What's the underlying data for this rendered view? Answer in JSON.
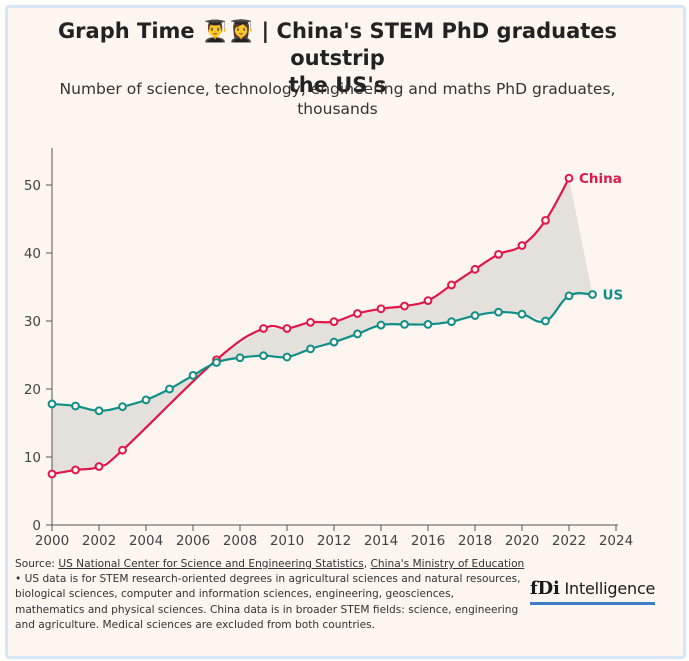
{
  "header": {
    "title_line1": "Graph Time 👨‍🎓👩‍🎓 | China's STEM PhD graduates outstrip",
    "title_line2": "the US's",
    "subtitle_line1": "Number of science, technology, engineering and maths PhD graduates,",
    "subtitle_line2": "thousands"
  },
  "chart_data": {
    "type": "line",
    "title": "China's STEM PhD graduates outstrip the US's",
    "ylabel": "Number of science, technology, engineering and maths PhD graduates, thousands",
    "xlim": [
      2000,
      2024
    ],
    "ylim": [
      0,
      55
    ],
    "x_ticks": [
      2000,
      2002,
      2004,
      2006,
      2008,
      2010,
      2012,
      2014,
      2016,
      2018,
      2020,
      2022,
      2024
    ],
    "y_ticks": [
      0,
      10,
      20,
      30,
      40,
      50
    ],
    "series": [
      {
        "name": "China",
        "color": "#e0174a",
        "points": [
          [
            2000,
            7.5
          ],
          [
            2001,
            8.1
          ],
          [
            2002,
            8.6
          ],
          [
            2003,
            11
          ],
          [
            2007,
            24.3
          ],
          [
            2009,
            28.9
          ],
          [
            2010,
            28.9
          ],
          [
            2011,
            29.8
          ],
          [
            2012,
            29.9
          ],
          [
            2013,
            31.1
          ],
          [
            2014,
            31.8
          ],
          [
            2015,
            32.2
          ],
          [
            2016,
            33
          ],
          [
            2017,
            35.3
          ],
          [
            2018,
            37.6
          ],
          [
            2019,
            39.8
          ],
          [
            2020,
            41.1
          ],
          [
            2021,
            44.8
          ],
          [
            2022,
            51
          ]
        ]
      },
      {
        "name": "US",
        "color": "#0f8f88",
        "points": [
          [
            2000,
            17.8
          ],
          [
            2001,
            17.5
          ],
          [
            2002,
            16.8
          ],
          [
            2003,
            17.4
          ],
          [
            2004,
            18.4
          ],
          [
            2005,
            20
          ],
          [
            2006,
            22
          ],
          [
            2007,
            23.9
          ],
          [
            2008,
            24.6
          ],
          [
            2009,
            24.9
          ],
          [
            2010,
            24.7
          ],
          [
            2011,
            25.9
          ],
          [
            2012,
            26.9
          ],
          [
            2013,
            28.1
          ],
          [
            2014,
            29.4
          ],
          [
            2015,
            29.5
          ],
          [
            2016,
            29.5
          ],
          [
            2017,
            29.9
          ],
          [
            2018,
            30.8
          ],
          [
            2019,
            31.3
          ],
          [
            2020,
            31
          ],
          [
            2021,
            30
          ],
          [
            2022,
            33.7
          ],
          [
            2023,
            33.9
          ]
        ]
      }
    ]
  },
  "footer": {
    "source_label": "Source: ",
    "source_link1": "US National Center for Science and Engineering Statistics",
    "source_sep": ", ",
    "source_link2": "China's Ministry of Education",
    "source_note": " • US data is for STEM research-oriented degrees in agricultural sciences and natural resources, biological sciences, computer and information sciences, engineering, geosciences, mathematics and physical sciences. China data is in broader STEM fields: science, engineering and agriculture. Medical sciences are excluded from both countries.",
    "logo_mark": "fDi",
    "logo_text": "Intelligence"
  }
}
